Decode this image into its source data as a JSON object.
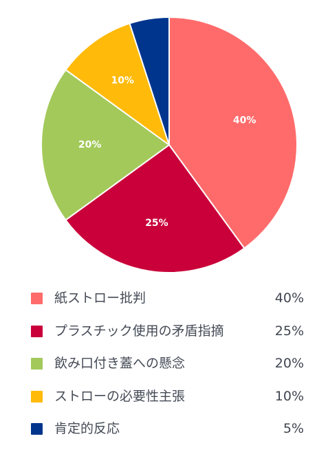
{
  "chart_data": {
    "type": "pie",
    "slices": [
      {
        "label": "紙ストロー批判",
        "value": 40,
        "display": "40%",
        "color": "#ff6b6b"
      },
      {
        "label": "プラスチック使用の矛盾指摘",
        "value": 25,
        "display": "25%",
        "color": "#c9003a"
      },
      {
        "label": "飲み口付き蓋への懸念",
        "value": 20,
        "display": "20%",
        "color": "#a3c95a"
      },
      {
        "label": "ストローの必要性主張",
        "value": 10,
        "display": "10%",
        "color": "#ffba0a"
      },
      {
        "label": "肯定的反応",
        "value": 5,
        "display": "5%",
        "color": "#00358e"
      }
    ],
    "legend_position": "bottom",
    "value_labels_inside": true,
    "small_slice_label_hidden_below": 10
  }
}
